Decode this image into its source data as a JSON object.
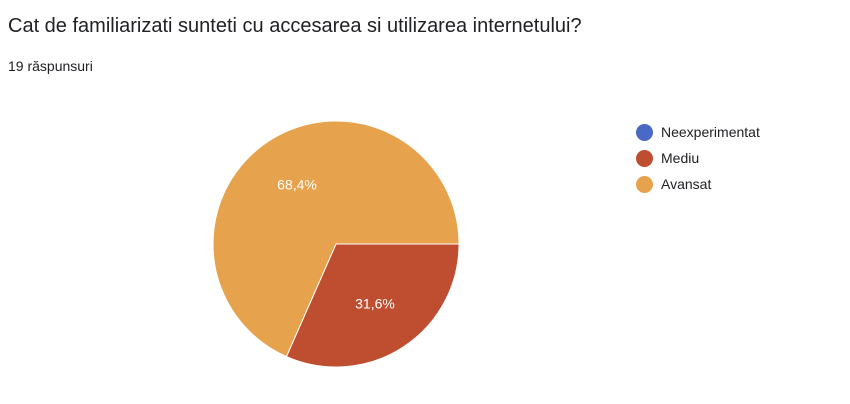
{
  "header": {
    "question": "Cat de familiarizati sunteti cu accesarea si utilizarea internetului?",
    "responses": "19 răspunsuri"
  },
  "chart_data": {
    "type": "pie",
    "categories": [
      "Neexperimentat",
      "Mediu",
      "Avansat"
    ],
    "values": [
      0,
      31.6,
      68.4
    ],
    "colors": [
      "#4a69c6",
      "#bf4e30",
      "#e6a24c"
    ],
    "slice_labels": [
      "",
      "31,6%",
      "68,4%"
    ],
    "legend": "right"
  }
}
